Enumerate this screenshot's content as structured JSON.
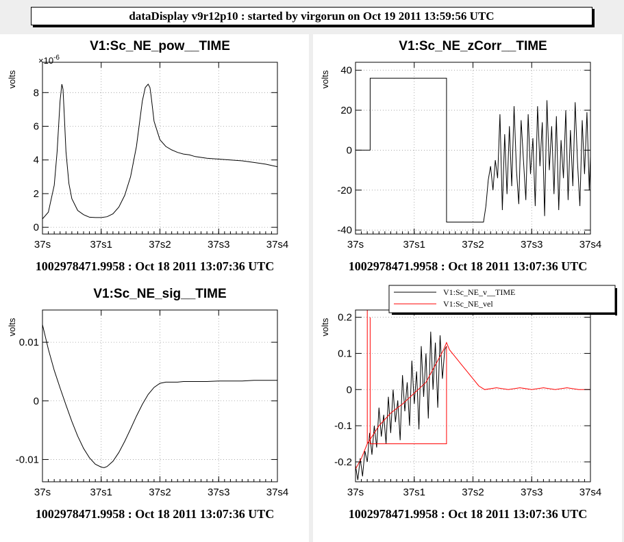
{
  "header": {
    "title": "dataDisplay v9r12p10 : started by virgorun on Oct 19 2011 13:59:56 UTC"
  },
  "chart_data": [
    {
      "type": "line",
      "title": "V1:Sc_NE_pow__TIME",
      "ylabel": "volts",
      "xlabel": "1002978471.9958 : Oct 18 2011 13:07:36 UTC",
      "y_multiplier": "×10",
      "y_multiplier_exp": "-6",
      "ylim": [
        -0.4,
        9.8
      ],
      "yticks": [
        0,
        2,
        4,
        6,
        8
      ],
      "ytick_labels": [
        "0",
        "2",
        "4",
        "6",
        "8"
      ],
      "xlim": [
        0,
        0.4
      ],
      "xticks": [
        0,
        0.1,
        0.2,
        0.3,
        0.4
      ],
      "xtick_labels": [
        "37s",
        "37s1",
        "37s2",
        "37s3",
        "37s4"
      ],
      "series": [
        {
          "color": "#000000",
          "x": [
            0,
            0.01,
            0.02,
            0.025,
            0.03,
            0.033,
            0.035,
            0.037,
            0.04,
            0.045,
            0.05,
            0.06,
            0.07,
            0.08,
            0.09,
            0.1,
            0.11,
            0.12,
            0.13,
            0.14,
            0.15,
            0.16,
            0.17,
            0.175,
            0.18,
            0.183,
            0.185,
            0.19,
            0.2,
            0.21,
            0.22,
            0.23,
            0.24,
            0.25,
            0.26,
            0.28,
            0.3,
            0.32,
            0.34,
            0.36,
            0.38,
            0.4
          ],
          "y": [
            0.5,
            0.9,
            2.5,
            4.5,
            7.5,
            8.5,
            8.2,
            6.8,
            4.5,
            2.6,
            1.7,
            1.0,
            0.75,
            0.6,
            0.58,
            0.58,
            0.63,
            0.8,
            1.2,
            1.9,
            3.0,
            4.8,
            7.5,
            8.3,
            8.5,
            8.3,
            7.8,
            6.3,
            5.2,
            4.8,
            4.6,
            4.45,
            4.35,
            4.3,
            4.2,
            4.1,
            4.05,
            4.0,
            3.95,
            3.85,
            3.75,
            3.6
          ]
        }
      ]
    },
    {
      "type": "line",
      "title": "V1:Sc_NE_zCorr__TIME",
      "ylabel": "volts",
      "xlabel": "1002978471.9958 : Oct 18 2011 13:07:36 UTC",
      "ylim": [
        -42,
        44
      ],
      "yticks": [
        -40,
        -20,
        0,
        20,
        40
      ],
      "ytick_labels": [
        "-40",
        "-20",
        "0",
        "20",
        "40"
      ],
      "xlim": [
        0,
        0.4
      ],
      "xticks": [
        0,
        0.1,
        0.2,
        0.3,
        0.4
      ],
      "xtick_labels": [
        "37s",
        "37s1",
        "37s2",
        "37s3",
        "37s4"
      ],
      "series": [
        {
          "color": "#000000",
          "x": [
            0,
            0.025,
            0.025,
            0.155,
            0.155,
            0.218,
            0.222,
            0.226,
            0.23,
            0.234,
            0.238,
            0.242,
            0.246,
            0.25,
            0.254,
            0.258,
            0.262,
            0.266,
            0.27,
            0.274,
            0.278,
            0.282,
            0.286,
            0.29,
            0.294,
            0.298,
            0.302,
            0.306,
            0.31,
            0.314,
            0.318,
            0.322,
            0.326,
            0.33,
            0.334,
            0.338,
            0.342,
            0.346,
            0.35,
            0.354,
            0.358,
            0.362,
            0.366,
            0.37,
            0.374,
            0.378,
            0.382,
            0.386,
            0.39,
            0.394,
            0.398,
            0.4
          ],
          "y": [
            0,
            0,
            36,
            36,
            -36,
            -36,
            -28,
            -15,
            -8,
            -20,
            -5,
            -14,
            18,
            -30,
            8,
            -22,
            12,
            -18,
            22,
            -10,
            -27,
            15,
            -5,
            -25,
            18,
            -12,
            6,
            -28,
            22,
            -8,
            14,
            -33,
            25,
            -10,
            12,
            -22,
            17,
            -30,
            5,
            -14,
            20,
            -25,
            10,
            -18,
            24,
            -6,
            -28,
            15,
            -12,
            19,
            -20,
            -3
          ]
        }
      ]
    },
    {
      "type": "line",
      "title": "V1:Sc_NE_sig__TIME",
      "ylabel": "volts",
      "xlabel": "1002978471.9958 : Oct 18 2011 13:07:36 UTC",
      "ylim": [
        -0.0138,
        0.0155
      ],
      "yticks": [
        -0.01,
        0,
        0.01
      ],
      "ytick_labels": [
        "-0.01",
        "0",
        "0.01"
      ],
      "xlim": [
        0,
        0.4
      ],
      "xticks": [
        0,
        0.1,
        0.2,
        0.3,
        0.4
      ],
      "xtick_labels": [
        "37s",
        "37s1",
        "37s2",
        "37s3",
        "37s4"
      ],
      "series": [
        {
          "color": "#000000",
          "x": [
            0,
            0.01,
            0.02,
            0.03,
            0.04,
            0.05,
            0.06,
            0.07,
            0.08,
            0.09,
            0.1,
            0.105,
            0.11,
            0.12,
            0.13,
            0.14,
            0.15,
            0.16,
            0.17,
            0.18,
            0.19,
            0.2,
            0.21,
            0.22,
            0.23,
            0.24,
            0.26,
            0.28,
            0.3,
            0.32,
            0.34,
            0.36,
            0.38,
            0.4
          ],
          "y": [
            0.013,
            0.0088,
            0.0052,
            0.0022,
            -0.0007,
            -0.0035,
            -0.006,
            -0.0081,
            -0.0097,
            -0.0108,
            -0.0113,
            -0.0114,
            -0.0112,
            -0.0103,
            -0.0088,
            -0.0069,
            -0.0048,
            -0.0026,
            -0.0006,
            0.0011,
            0.0023,
            0.003,
            0.0032,
            0.0032,
            0.0032,
            0.0033,
            0.0033,
            0.0033,
            0.0034,
            0.0034,
            0.0034,
            0.0035,
            0.0035,
            0.0035
          ]
        }
      ]
    },
    {
      "type": "line",
      "title": "",
      "ylabel": "volts",
      "xlabel": "1002978471.9958 : Oct 18 2011 13:07:36 UTC",
      "ylim": [
        -0.255,
        0.22
      ],
      "yticks": [
        -0.2,
        -0.1,
        0,
        0.1,
        0.2
      ],
      "ytick_labels": [
        "-0.2",
        "-0.1",
        "0",
        "0.1",
        "0.2"
      ],
      "xlim": [
        0,
        0.4
      ],
      "xticks": [
        0,
        0.1,
        0.2,
        0.3,
        0.4
      ],
      "xtick_labels": [
        "37s",
        "37s1",
        "37s2",
        "37s3",
        "37s4"
      ],
      "legend_position": "top-right",
      "series": [
        {
          "name": "V1:Sc_NE_v__TIME",
          "color": "#000000",
          "x": [
            0,
            0.004,
            0.008,
            0.012,
            0.016,
            0.02,
            0.024,
            0.028,
            0.032,
            0.036,
            0.04,
            0.044,
            0.048,
            0.052,
            0.056,
            0.06,
            0.064,
            0.068,
            0.072,
            0.076,
            0.08,
            0.084,
            0.088,
            0.092,
            0.096,
            0.1,
            0.104,
            0.108,
            0.112,
            0.116,
            0.12,
            0.124,
            0.128,
            0.132,
            0.136,
            0.14,
            0.144,
            0.148,
            0.152,
            0.155
          ],
          "y": [
            -0.21,
            -0.25,
            -0.19,
            -0.24,
            -0.17,
            -0.2,
            -0.12,
            -0.18,
            -0.1,
            -0.16,
            -0.05,
            -0.13,
            -0.07,
            -0.15,
            -0.02,
            -0.12,
            0.0,
            -0.09,
            -0.03,
            -0.14,
            0.04,
            -0.06,
            0.02,
            -0.1,
            0.08,
            -0.04,
            0.05,
            -0.11,
            0.12,
            -0.02,
            0.1,
            -0.08,
            0.16,
            0.0,
            0.13,
            -0.05,
            0.15,
            0.03,
            0.11,
            0.12
          ]
        },
        {
          "name": "V1:Sc_NE_vel",
          "color": "#ff0000",
          "x": [
            0,
            0.01,
            0.02,
            0.02,
            0.02,
            0.04,
            0.06,
            0.08,
            0.1,
            0.12,
            0.15,
            0.155,
            0.16,
            0.17,
            0.18,
            0.19,
            0.2,
            0.21,
            0.22,
            0.24,
            0.26,
            0.28,
            0.3,
            0.32,
            0.34,
            0.36,
            0.38,
            0.4
          ],
          "y": [
            -0.22,
            -0.19,
            -0.15,
            0.22,
            -0.15,
            -0.1,
            -0.065,
            -0.04,
            -0.01,
            0.02,
            0.11,
            0.13,
            0.11,
            0.09,
            0.07,
            0.05,
            0.03,
            0.01,
            0.0,
            0.005,
            0.0,
            0.005,
            0.0,
            0.005,
            0.0,
            0.005,
            0.0,
            0.0
          ]
        },
        {
          "name": "",
          "color": "#ff0000",
          "x": [
            0.025,
            0.025,
            0.155,
            0.155
          ],
          "y": [
            0.2,
            -0.15,
            -0.15,
            0.12
          ]
        }
      ]
    }
  ]
}
